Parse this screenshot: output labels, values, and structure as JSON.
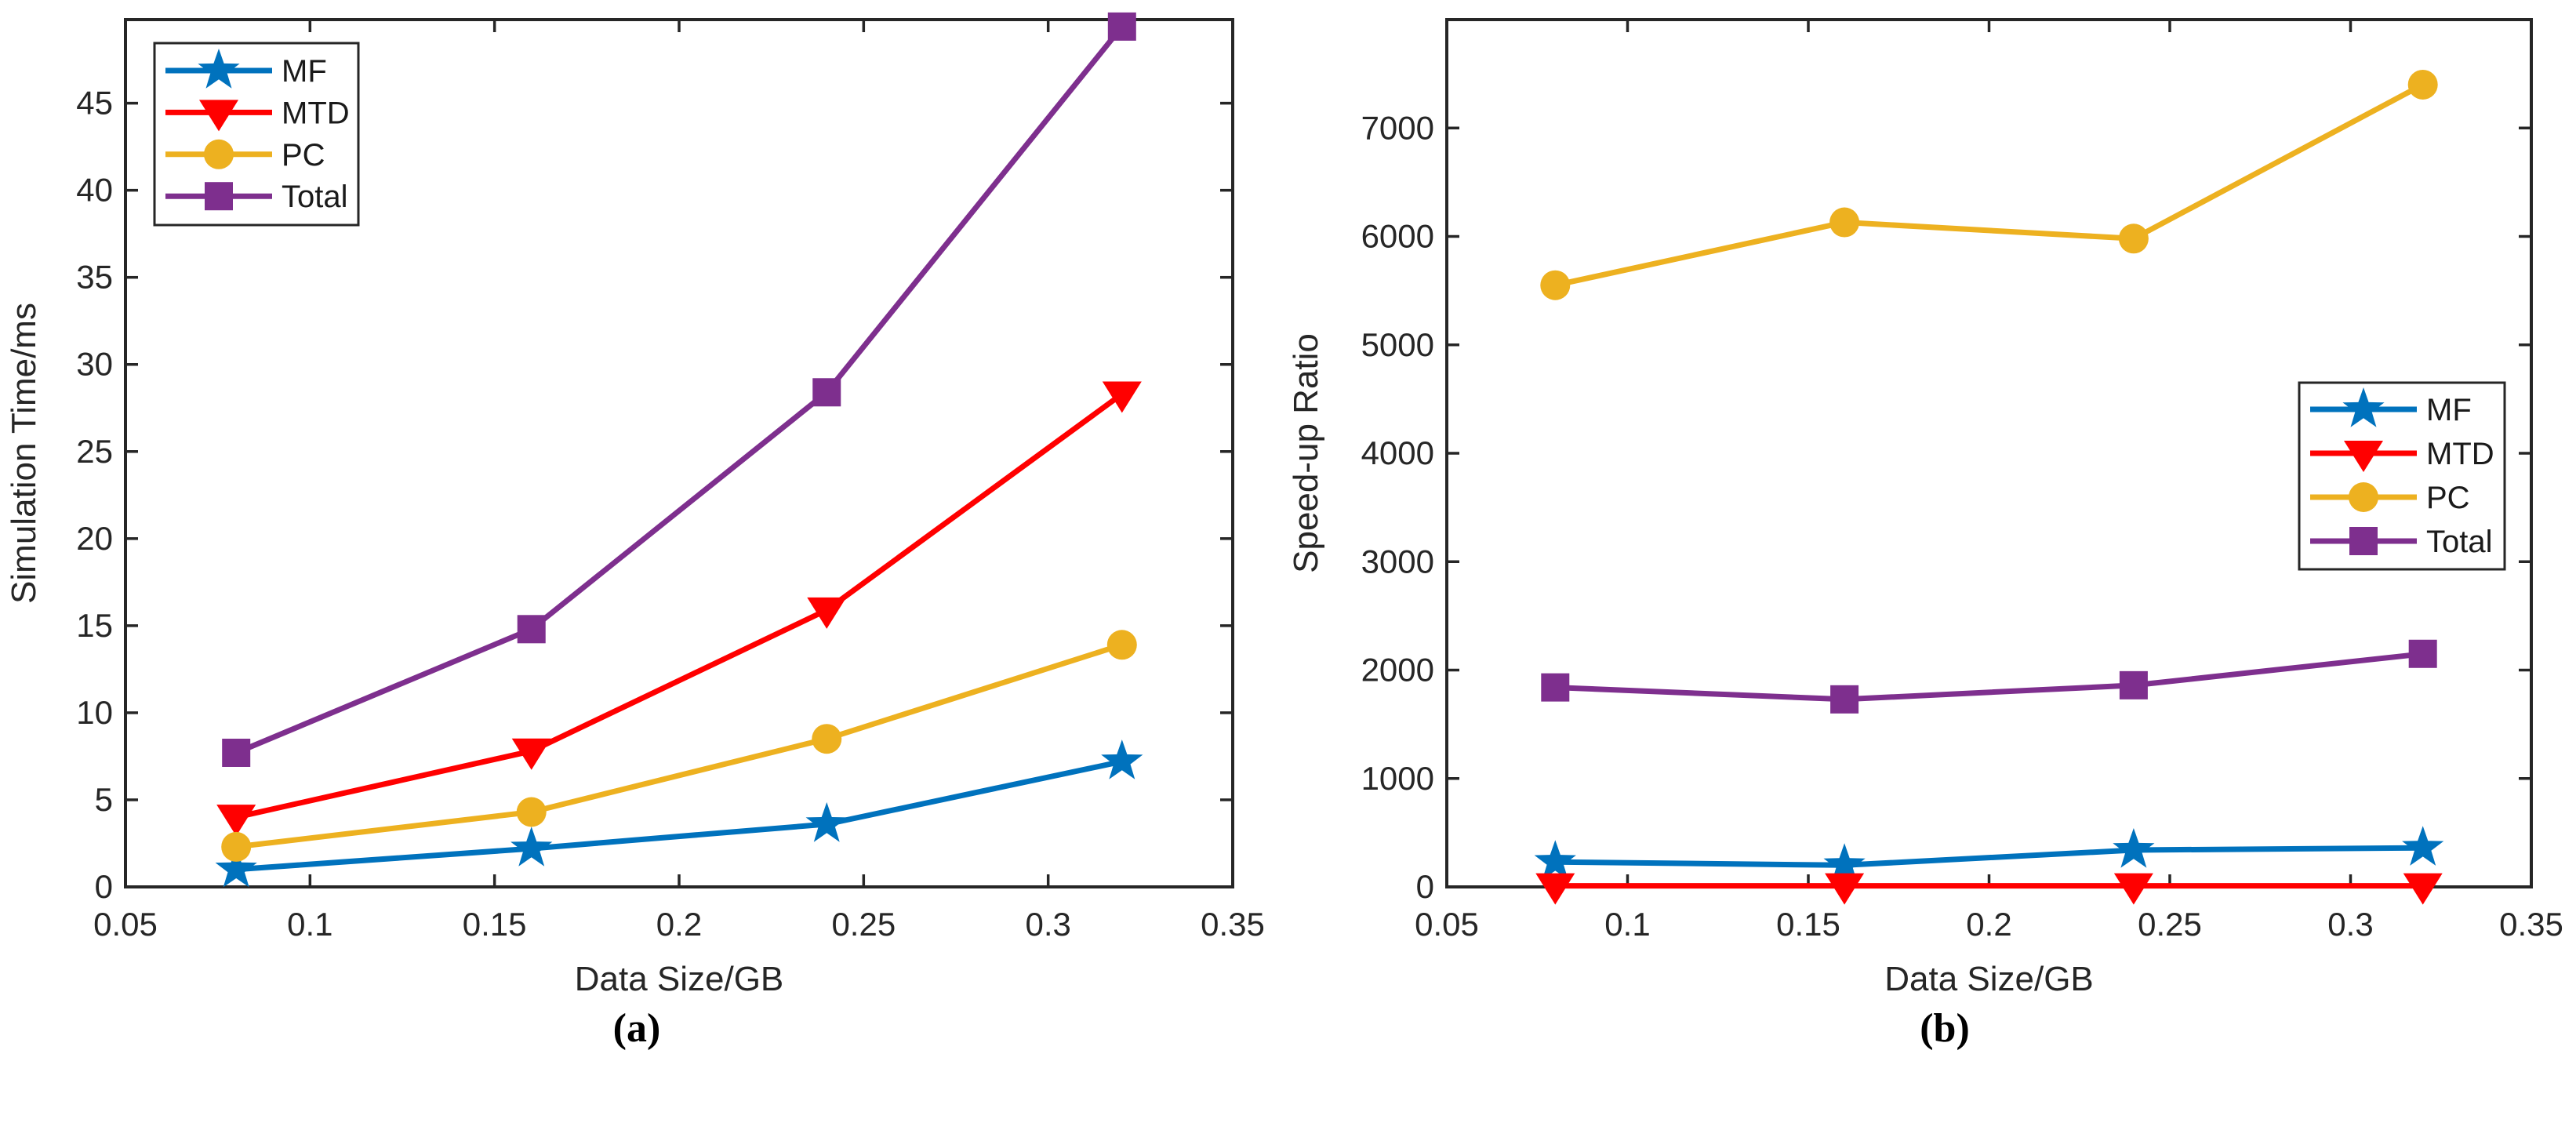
{
  "figure": {
    "background": "#ffffff",
    "frame_color": "#262626",
    "text_color": "#262626",
    "captions": [
      {
        "text": "(a)"
      },
      {
        "text": "(b)"
      }
    ]
  },
  "chart_data": [
    {
      "id": "a",
      "type": "line",
      "caption": "(a)",
      "xlabel": "Data Size/GB",
      "ylabel": "Simulation Time/ms",
      "x": [
        0.08,
        0.16,
        0.24,
        0.32
      ],
      "xlim": [
        0.05,
        0.35
      ],
      "ylim": [
        0,
        49.8
      ],
      "xticks": [
        0.05,
        0.1,
        0.15,
        0.2,
        0.25,
        0.3,
        0.35
      ],
      "xtick_labels": [
        "0.05",
        "0.1",
        "0.15",
        "0.2",
        "0.25",
        "0.3",
        "0.35"
      ],
      "yticks": [
        0,
        5,
        10,
        15,
        20,
        25,
        30,
        35,
        40,
        45
      ],
      "ytick_labels": [
        "0",
        "5",
        "10",
        "15",
        "20",
        "25",
        "30",
        "35",
        "40",
        "45"
      ],
      "grid": false,
      "legend_position": "top-left",
      "series": [
        {
          "name": "MF",
          "color": "#0072BD",
          "marker": "star",
          "values": [
            1.0,
            2.2,
            3.6,
            7.2
          ]
        },
        {
          "name": "MTD",
          "color": "#FF0000",
          "marker": "triangle-down",
          "values": [
            4.0,
            7.8,
            15.9,
            28.3
          ]
        },
        {
          "name": "PC",
          "color": "#EDB120",
          "marker": "circle",
          "values": [
            2.3,
            4.3,
            8.5,
            13.9
          ]
        },
        {
          "name": "Total",
          "color": "#7E2F8E",
          "marker": "square",
          "values": [
            7.7,
            14.8,
            28.4,
            49.4
          ]
        }
      ]
    },
    {
      "id": "b",
      "type": "line",
      "caption": "(b)",
      "xlabel": "Data Size/GB",
      "ylabel": "Speed-up Ratio",
      "x": [
        0.08,
        0.16,
        0.24,
        0.32
      ],
      "xlim": [
        0.05,
        0.35
      ],
      "ylim": [
        0,
        8000
      ],
      "xticks": [
        0.05,
        0.1,
        0.15,
        0.2,
        0.25,
        0.3,
        0.35
      ],
      "xtick_labels": [
        "0.05",
        "0.1",
        "0.15",
        "0.2",
        "0.25",
        "0.3",
        "0.35"
      ],
      "yticks": [
        0,
        1000,
        2000,
        3000,
        4000,
        5000,
        6000,
        7000
      ],
      "ytick_labels": [
        "0",
        "1000",
        "2000",
        "3000",
        "4000",
        "5000",
        "6000",
        "7000"
      ],
      "grid": false,
      "legend_position": "right-middle",
      "series": [
        {
          "name": "MF",
          "color": "#0072BD",
          "marker": "star",
          "values": [
            230,
            200,
            340,
            360
          ]
        },
        {
          "name": "MTD",
          "color": "#FF0000",
          "marker": "triangle-down",
          "values": [
            10,
            10,
            10,
            10
          ]
        },
        {
          "name": "PC",
          "color": "#EDB120",
          "marker": "circle",
          "values": [
            5550,
            6130,
            5980,
            7400
          ]
        },
        {
          "name": "Total",
          "color": "#7E2F8E",
          "marker": "square",
          "values": [
            1840,
            1730,
            1860,
            2150
          ]
        }
      ]
    }
  ]
}
